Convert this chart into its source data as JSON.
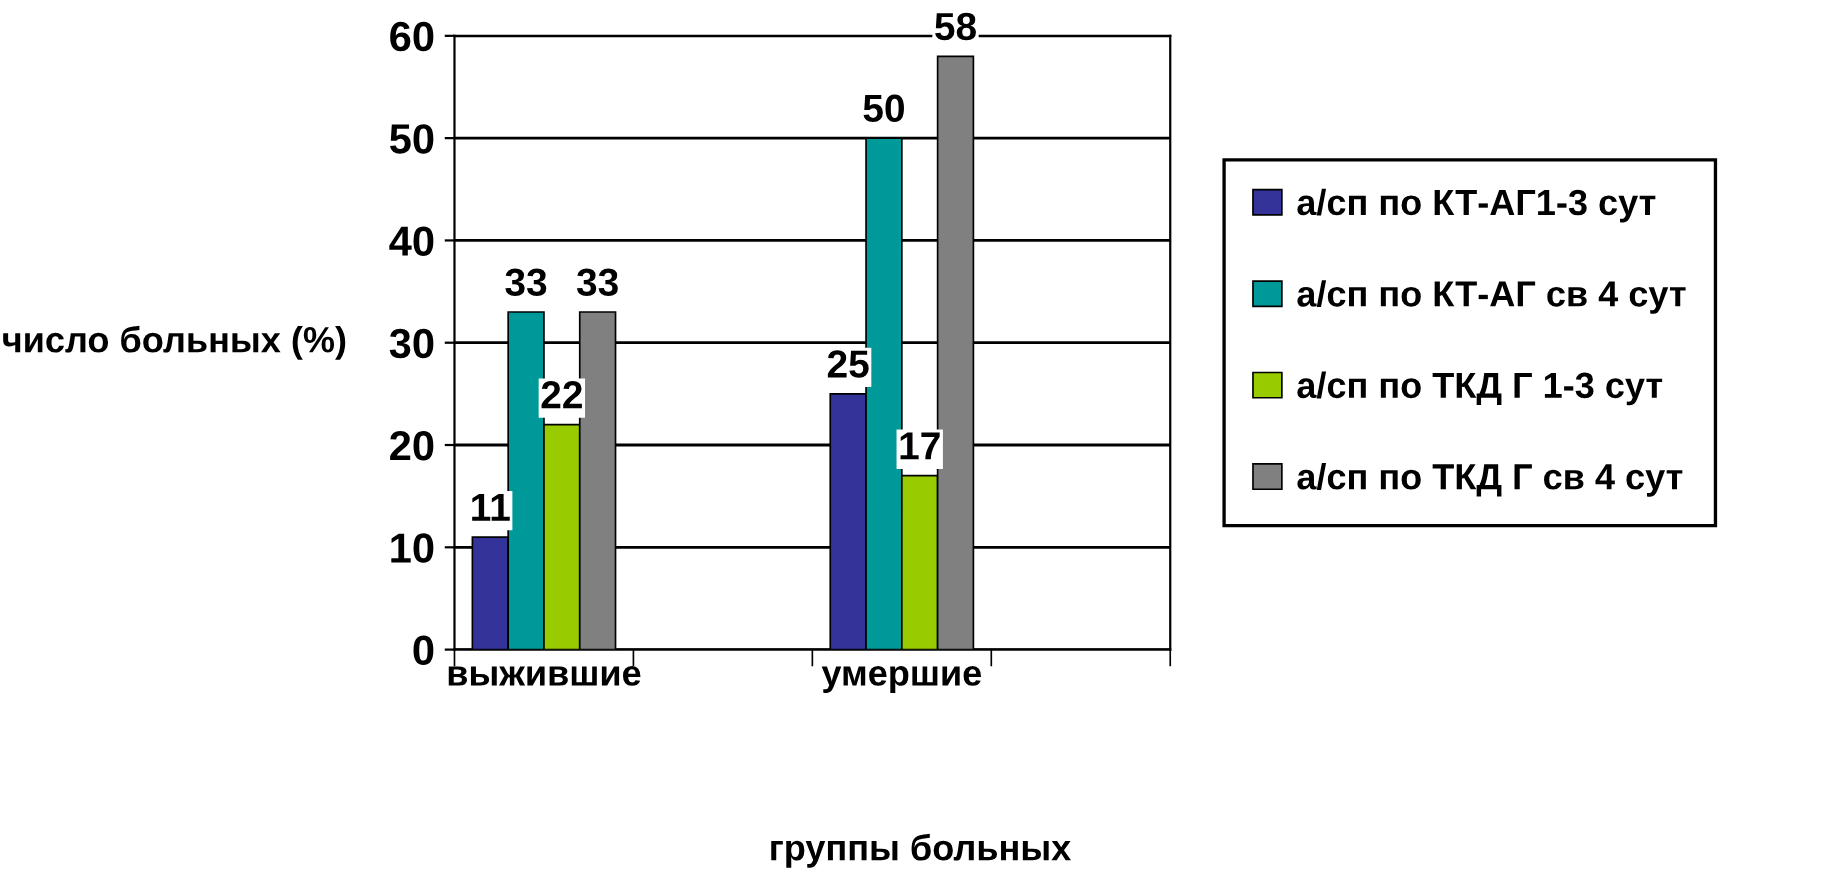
{
  "chart_data": {
    "type": "bar",
    "xlabel": "группы больных",
    "ylabel": "число больных (%)",
    "categories": [
      "выжившие",
      null,
      "умершие",
      null
    ],
    "series": [
      {
        "name": "а/сп по КТ-АГ1-3 сут",
        "color": "#333399",
        "values": [
          11,
          null,
          25,
          null
        ]
      },
      {
        "name": "а/сп по КТ-АГ св 4 сут",
        "color": "#009999",
        "values": [
          33,
          null,
          50,
          null
        ]
      },
      {
        "name": "а/сп по ТКД Г 1-3 сут",
        "color": "#99cc00",
        "values": [
          22,
          null,
          17,
          null
        ]
      },
      {
        "name": "а/сп по ТКД Г св 4 сут",
        "color": "#808080",
        "values": [
          33,
          null,
          58,
          null
        ]
      }
    ],
    "ylim": [
      0,
      60
    ],
    "yticks": [
      0,
      10,
      20,
      30,
      40,
      50,
      60
    ],
    "grid": "y",
    "legend": "right",
    "data_labels": true
  }
}
